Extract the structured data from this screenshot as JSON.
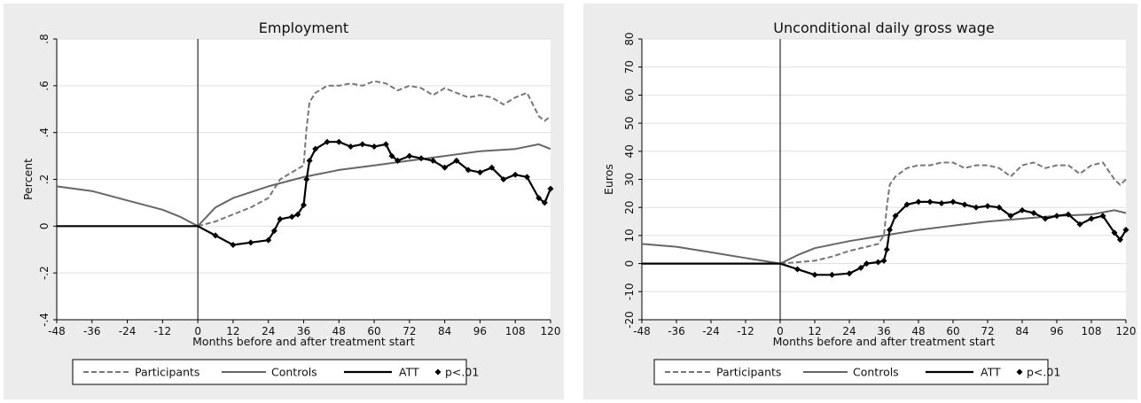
{
  "colors": {
    "participants": "#777777",
    "controls": "#666666",
    "att": "#000000",
    "background": "#ececec",
    "plot": "#ffffff",
    "grid": "#e0e0e0"
  },
  "chart_data": [
    {
      "type": "line",
      "title": "Employment",
      "xlabel": "Months before and after treatment start",
      "ylabel": "Percent",
      "xlim": [
        -48,
        120
      ],
      "ylim": [
        -0.4,
        0.8
      ],
      "xticks": [
        -48,
        -36,
        -24,
        -12,
        0,
        12,
        24,
        36,
        48,
        60,
        72,
        84,
        96,
        108,
        120
      ],
      "xtick_labels": [
        "-48",
        "-36",
        "-24",
        "-12",
        "0",
        "12",
        "24",
        "36",
        "48",
        "60",
        "72",
        "84",
        "96",
        "108",
        "120"
      ],
      "yticks": [
        -0.4,
        -0.2,
        0,
        0.2,
        0.4,
        0.6,
        0.8
      ],
      "ytick_labels": [
        "-.4",
        "-.2",
        "0",
        ".2",
        ".4",
        ".6",
        ".8"
      ],
      "vline_x": 0,
      "grid": true,
      "legend_position": "bottom",
      "series": [
        {
          "name": "Participants",
          "style": "dashed",
          "x": [
            0,
            6,
            12,
            18,
            24,
            28,
            32,
            36,
            37,
            38,
            40,
            44,
            48,
            52,
            56,
            60,
            64,
            68,
            72,
            76,
            80,
            84,
            88,
            92,
            96,
            100,
            104,
            108,
            112,
            116,
            118,
            120
          ],
          "y": [
            0,
            0.02,
            0.05,
            0.08,
            0.12,
            0.2,
            0.23,
            0.26,
            0.42,
            0.53,
            0.57,
            0.6,
            0.6,
            0.61,
            0.6,
            0.62,
            0.61,
            0.58,
            0.6,
            0.59,
            0.56,
            0.59,
            0.57,
            0.55,
            0.56,
            0.55,
            0.52,
            0.55,
            0.57,
            0.47,
            0.45,
            0.47
          ]
        },
        {
          "name": "Controls",
          "style": "solid",
          "x": [
            -48,
            -36,
            -24,
            -12,
            -6,
            0,
            6,
            12,
            24,
            36,
            48,
            60,
            72,
            84,
            96,
            108,
            116,
            120
          ],
          "y": [
            0.17,
            0.15,
            0.11,
            0.07,
            0.04,
            0,
            0.08,
            0.12,
            0.17,
            0.21,
            0.24,
            0.26,
            0.28,
            0.3,
            0.32,
            0.33,
            0.35,
            0.33
          ]
        },
        {
          "name": "ATT",
          "style": "solid-thick",
          "x": [
            -48,
            -36,
            -24,
            -12,
            0,
            6,
            12,
            18,
            24,
            26,
            28,
            32,
            34,
            36,
            37,
            38,
            40,
            44,
            48,
            52,
            56,
            60,
            64,
            66,
            68,
            72,
            76,
            80,
            84,
            88,
            92,
            96,
            100,
            104,
            108,
            112,
            116,
            118,
            120
          ],
          "y": [
            0,
            0,
            0,
            0,
            0,
            -0.04,
            -0.08,
            -0.07,
            -0.06,
            -0.02,
            0.03,
            0.04,
            0.05,
            0.09,
            0.2,
            0.28,
            0.33,
            0.36,
            0.36,
            0.34,
            0.35,
            0.34,
            0.35,
            0.3,
            0.28,
            0.3,
            0.29,
            0.28,
            0.25,
            0.28,
            0.24,
            0.23,
            0.25,
            0.2,
            0.22,
            0.21,
            0.12,
            0.1,
            0.16
          ]
        }
      ],
      "legend": {
        "participants": "Participants",
        "controls": "Controls",
        "att": "ATT",
        "signif": "p<.01"
      }
    },
    {
      "type": "line",
      "title": "Unconditional daily gross wage",
      "xlabel": "Months before and after treatment start",
      "ylabel": "Euros",
      "xlim": [
        -48,
        120
      ],
      "ylim": [
        -20,
        80
      ],
      "xticks": [
        -48,
        -36,
        -24,
        -12,
        0,
        12,
        24,
        36,
        48,
        60,
        72,
        84,
        96,
        108,
        120
      ],
      "xtick_labels": [
        "-48",
        "-36",
        "-24",
        "-12",
        "0",
        "12",
        "24",
        "36",
        "48",
        "60",
        "72",
        "84",
        "96",
        "108",
        "120"
      ],
      "yticks": [
        -20,
        -10,
        0,
        10,
        20,
        30,
        40,
        50,
        60,
        70,
        80
      ],
      "ytick_labels": [
        "-20",
        "-10",
        "0",
        "10",
        "20",
        "30",
        "40",
        "50",
        "60",
        "70",
        "80"
      ],
      "vline_x": 0,
      "grid": true,
      "legend_position": "bottom",
      "series": [
        {
          "name": "Participants",
          "style": "dashed",
          "x": [
            0,
            6,
            12,
            18,
            24,
            30,
            34,
            36,
            37,
            38,
            40,
            44,
            48,
            52,
            56,
            60,
            64,
            68,
            72,
            76,
            80,
            84,
            88,
            92,
            96,
            100,
            104,
            108,
            112,
            116,
            118,
            120
          ],
          "y": [
            0,
            0.5,
            1,
            2.5,
            4.5,
            6,
            7,
            10,
            20,
            28,
            31,
            34,
            35,
            35,
            36,
            36,
            34,
            35,
            35,
            34,
            31,
            35,
            36,
            34,
            35,
            35,
            32,
            35,
            36,
            30,
            28,
            30
          ]
        },
        {
          "name": "Controls",
          "style": "solid",
          "x": [
            -48,
            -36,
            -24,
            -12,
            -6,
            0,
            6,
            12,
            24,
            36,
            48,
            60,
            72,
            84,
            96,
            108,
            116,
            120
          ],
          "y": [
            7,
            6,
            4,
            2,
            1,
            0,
            3,
            5.5,
            8,
            10,
            12,
            13.5,
            15,
            16,
            17,
            17.5,
            19,
            18
          ]
        },
        {
          "name": "ATT",
          "style": "solid-thick",
          "x": [
            -48,
            -36,
            -24,
            -12,
            0,
            6,
            12,
            18,
            24,
            28,
            30,
            34,
            36,
            37,
            38,
            40,
            44,
            48,
            52,
            56,
            60,
            64,
            68,
            72,
            76,
            80,
            84,
            88,
            92,
            96,
            100,
            104,
            108,
            112,
            116,
            118,
            120
          ],
          "y": [
            0,
            0,
            0,
            0,
            0,
            -2,
            -4,
            -4,
            -3.5,
            -1.5,
            0,
            0.5,
            1,
            5,
            12,
            17,
            21,
            22,
            22,
            21.5,
            22,
            21,
            20,
            20.5,
            20,
            17,
            19,
            18,
            16,
            17,
            17.5,
            14,
            16,
            17,
            11,
            8.5,
            12
          ]
        }
      ],
      "legend": {
        "participants": "Participants",
        "controls": "Controls",
        "att": "ATT",
        "signif": "p<.01"
      }
    }
  ]
}
